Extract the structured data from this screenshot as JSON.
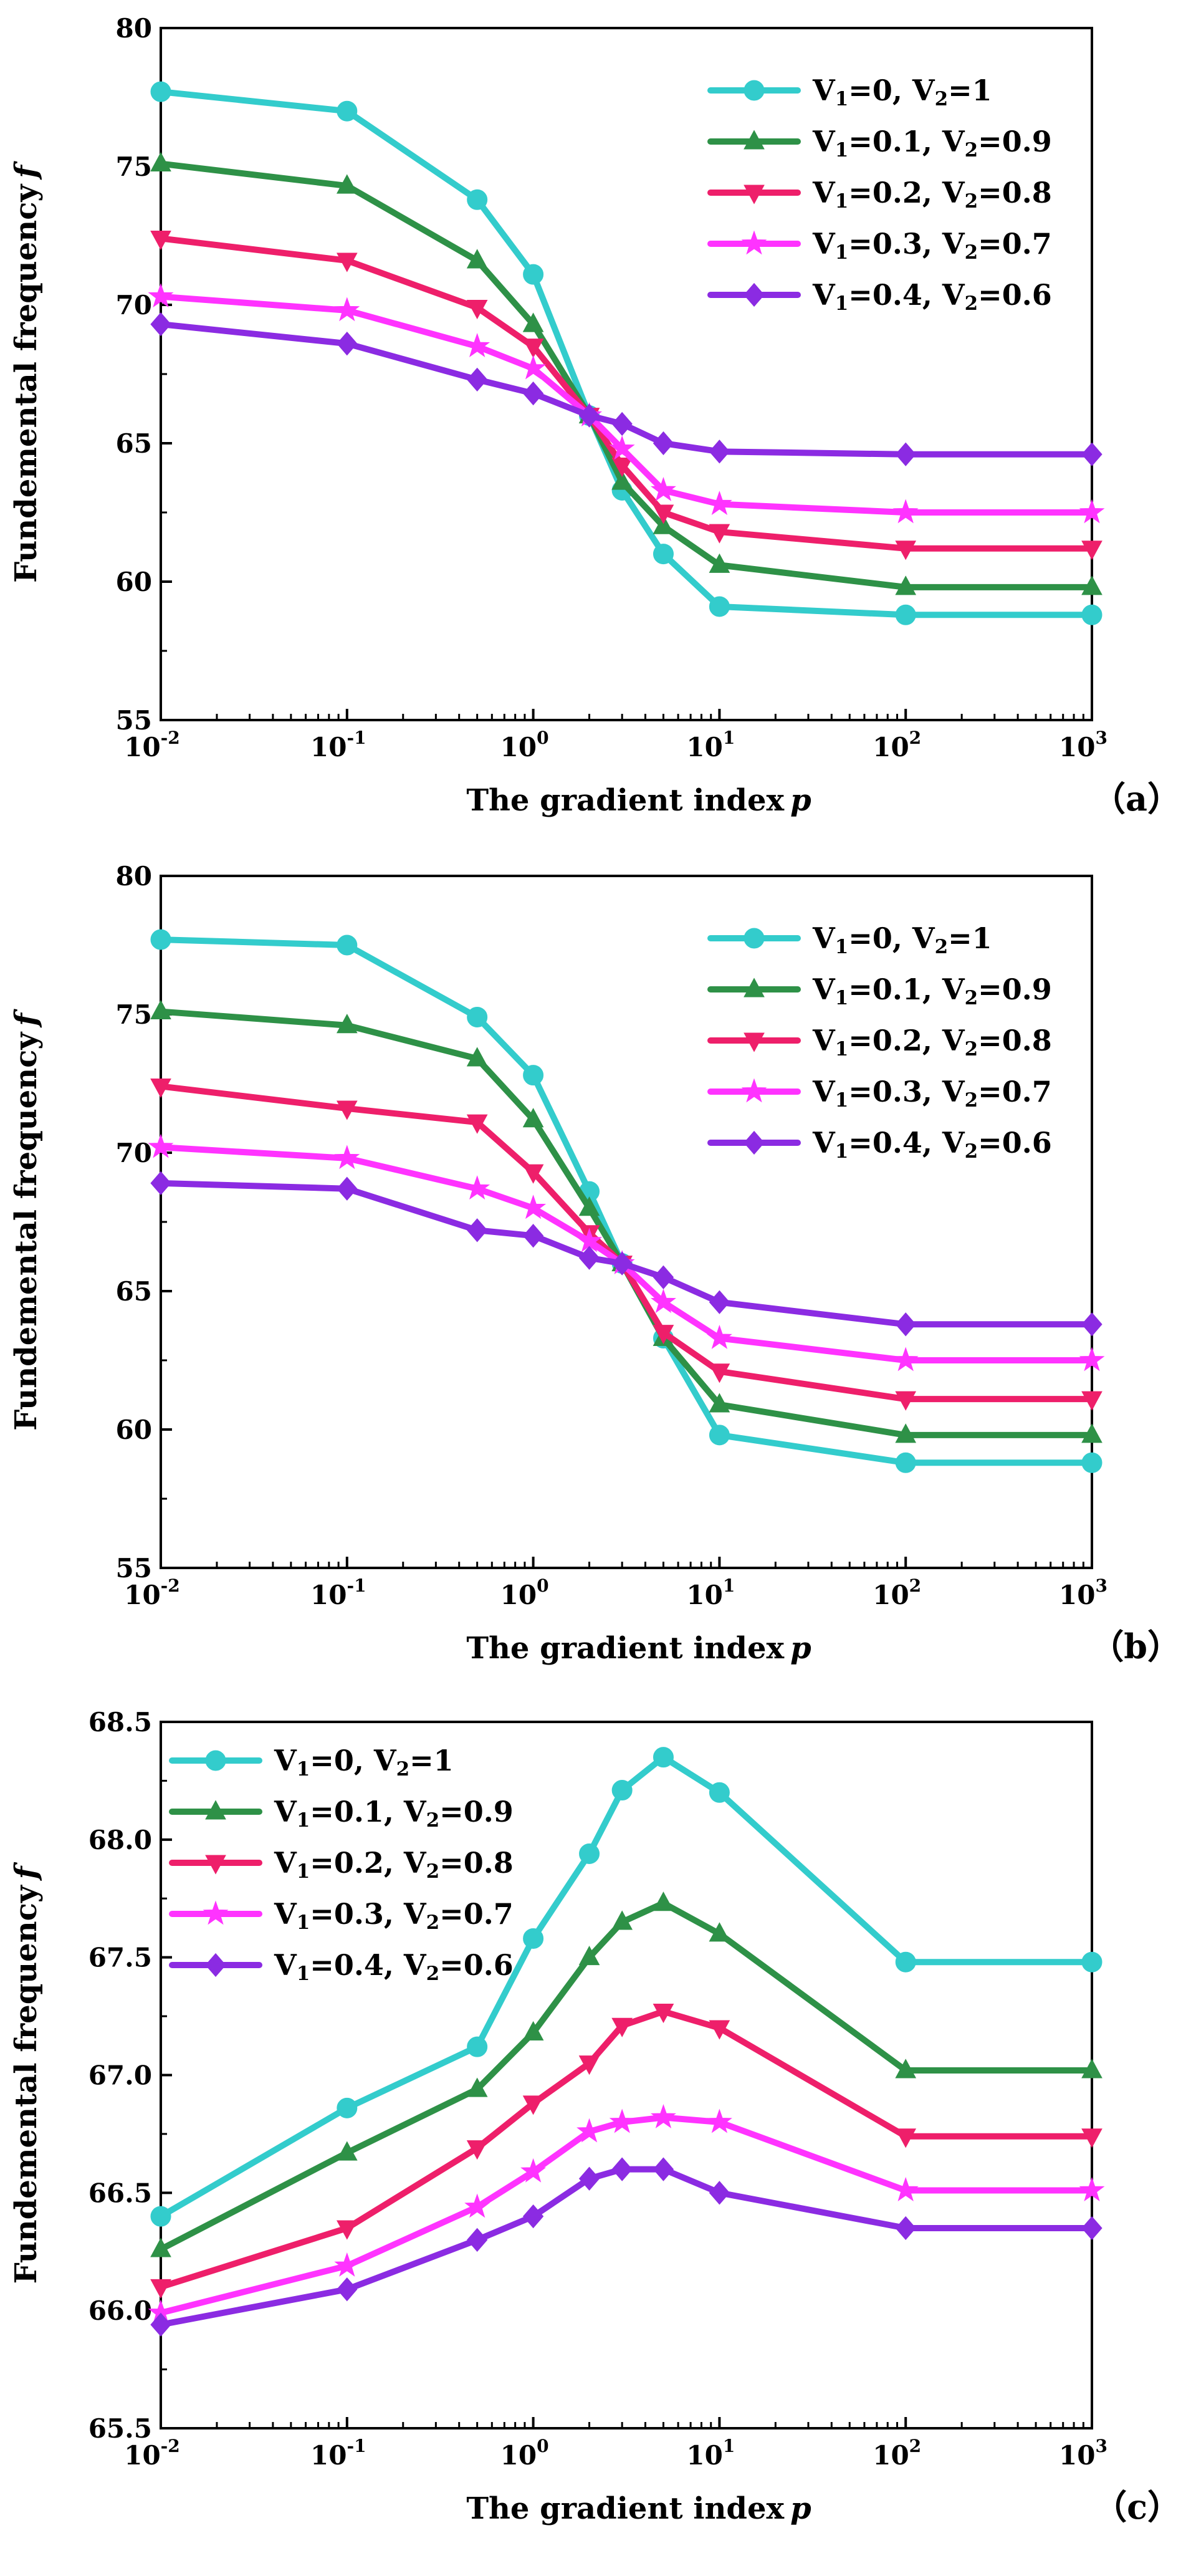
{
  "chart_data": [
    {
      "type": "line",
      "panel_label": "（a）",
      "xlabel": "The gradient index",
      "xlabel_var": "p",
      "ylabel": "Fundemental frequency",
      "ylabel_var": "f",
      "xscale": "log",
      "xlim": [
        0.01,
        1000
      ],
      "ylim": [
        55,
        80
      ],
      "yticks": [
        55,
        60,
        65,
        70,
        75,
        80
      ],
      "ytick_labels": [
        "55",
        "60",
        "65",
        "70",
        "75",
        "80"
      ],
      "xtick_exponents": [
        "-2",
        "-1",
        "0",
        "1",
        "2",
        "3"
      ],
      "legend_position": "top-right",
      "x": [
        0.01,
        0.1,
        0.5,
        1,
        2,
        3,
        5,
        10,
        100,
        1000
      ],
      "series": [
        {
          "name": "V1=0, V2=1",
          "legend": {
            "a": "V",
            "b": "1",
            "c": "=0, V",
            "d": "2",
            "e": "=1"
          },
          "marker": "circle",
          "color": "#33cccc",
          "values": [
            77.7,
            77.0,
            73.8,
            71.1,
            66.0,
            63.3,
            61.0,
            59.1,
            58.8,
            58.8
          ]
        },
        {
          "name": "V1=0.1, V2=0.9",
          "legend": {
            "a": "V",
            "b": "1",
            "c": "=0.1, V",
            "d": "2",
            "e": "=0.9"
          },
          "marker": "triangle-up",
          "color": "#2e9147",
          "values": [
            75.1,
            74.3,
            71.6,
            69.3,
            66.0,
            63.6,
            62.0,
            60.6,
            59.8,
            59.8
          ]
        },
        {
          "name": "V1=0.2, V2=0.8",
          "legend": {
            "a": "V",
            "b": "1",
            "c": "=0.2, V",
            "d": "2",
            "e": "=0.8"
          },
          "marker": "triangle-down",
          "color": "#ee1f6a",
          "values": [
            72.4,
            71.6,
            69.9,
            68.5,
            66.0,
            64.2,
            62.5,
            61.8,
            61.2,
            61.2
          ]
        },
        {
          "name": "V1=0.3, V2=0.7",
          "legend": {
            "a": "V",
            "b": "1",
            "c": "=0.3, V",
            "d": "2",
            "e": "=0.7"
          },
          "marker": "star",
          "color": "#ff33ff",
          "values": [
            70.3,
            69.8,
            68.5,
            67.7,
            66.0,
            64.8,
            63.3,
            62.8,
            62.5,
            62.5
          ]
        },
        {
          "name": "V1=0.4, V2=0.6",
          "legend": {
            "a": "V",
            "b": "1",
            "c": "=0.4, V",
            "d": "2",
            "e": "=0.6"
          },
          "marker": "diamond",
          "color": "#8b2be2",
          "values": [
            69.3,
            68.6,
            67.3,
            66.8,
            66.0,
            65.7,
            65.0,
            64.7,
            64.6,
            64.6
          ]
        }
      ]
    },
    {
      "type": "line",
      "panel_label": "（b）",
      "xlabel": "The gradient index",
      "xlabel_var": "p",
      "ylabel": "Fundemental frequency",
      "ylabel_var": "f",
      "xscale": "log",
      "xlim": [
        0.01,
        1000
      ],
      "ylim": [
        55,
        80
      ],
      "yticks": [
        55,
        60,
        65,
        70,
        75,
        80
      ],
      "ytick_labels": [
        "55",
        "60",
        "65",
        "70",
        "75",
        "80"
      ],
      "xtick_exponents": [
        "-2",
        "-1",
        "0",
        "1",
        "2",
        "3"
      ],
      "legend_position": "top-right",
      "x": [
        0.01,
        0.1,
        0.5,
        1,
        2,
        3,
        5,
        10,
        100,
        1000
      ],
      "series": [
        {
          "name": "V1=0, V2=1",
          "legend": {
            "a": "V",
            "b": "1",
            "c": "=0, V",
            "d": "2",
            "e": "=1"
          },
          "marker": "circle",
          "color": "#33cccc",
          "values": [
            77.7,
            77.5,
            74.9,
            72.8,
            68.6,
            66.0,
            63.3,
            59.8,
            58.8,
            58.8
          ]
        },
        {
          "name": "V1=0.1, V2=0.9",
          "legend": {
            "a": "V",
            "b": "1",
            "c": "=0.1, V",
            "d": "2",
            "e": "=0.9"
          },
          "marker": "triangle-up",
          "color": "#2e9147",
          "values": [
            75.1,
            74.6,
            73.4,
            71.2,
            68.0,
            66.0,
            63.3,
            60.9,
            59.8,
            59.8
          ]
        },
        {
          "name": "V1=0.2, V2=0.8",
          "legend": {
            "a": "V",
            "b": "1",
            "c": "=0.2, V",
            "d": "2",
            "e": "=0.8"
          },
          "marker": "triangle-down",
          "color": "#ee1f6a",
          "values": [
            72.4,
            71.6,
            71.1,
            69.3,
            67.1,
            66.0,
            63.5,
            62.1,
            61.1,
            61.1
          ]
        },
        {
          "name": "V1=0.3, V2=0.7",
          "legend": {
            "a": "V",
            "b": "1",
            "c": "=0.3, V",
            "d": "2",
            "e": "=0.7"
          },
          "marker": "star",
          "color": "#ff33ff",
          "values": [
            70.2,
            69.8,
            68.7,
            68.0,
            66.8,
            66.0,
            64.6,
            63.3,
            62.5,
            62.5
          ]
        },
        {
          "name": "V1=0.4, V2=0.6",
          "legend": {
            "a": "V",
            "b": "1",
            "c": "=0.4, V",
            "d": "2",
            "e": "=0.6"
          },
          "marker": "diamond",
          "color": "#8b2be2",
          "values": [
            68.9,
            68.7,
            67.2,
            67.0,
            66.2,
            66.0,
            65.5,
            64.6,
            63.8,
            63.8
          ]
        }
      ]
    },
    {
      "type": "line",
      "panel_label": "（c）",
      "xlabel": "The gradient index",
      "xlabel_var": "p",
      "ylabel": "Fundemental frequency",
      "ylabel_var": "f",
      "xscale": "log",
      "xlim": [
        0.01,
        1000
      ],
      "ylim": [
        65.5,
        68.5
      ],
      "yticks": [
        65.5,
        66.0,
        66.5,
        67.0,
        67.5,
        68.0,
        68.5
      ],
      "ytick_labels": [
        "65.5",
        "66.0",
        "66.5",
        "67.0",
        "67.5",
        "68.0",
        "68.5"
      ],
      "xtick_exponents": [
        "-2",
        "-1",
        "0",
        "1",
        "2",
        "3"
      ],
      "legend_position": "top-left",
      "x": [
        0.01,
        0.1,
        0.5,
        1,
        2,
        3,
        5,
        10,
        100,
        1000
      ],
      "series": [
        {
          "name": "V1=0, V2=1",
          "legend": {
            "a": "V",
            "b": "1",
            "c": "=0, V",
            "d": "2",
            "e": "=1"
          },
          "marker": "circle",
          "color": "#33cccc",
          "values": [
            66.4,
            66.86,
            67.12,
            67.58,
            67.94,
            68.21,
            68.35,
            68.2,
            67.48,
            67.48
          ]
        },
        {
          "name": "V1=0.1, V2=0.9",
          "legend": {
            "a": "V",
            "b": "1",
            "c": "=0.1, V",
            "d": "2",
            "e": "=0.9"
          },
          "marker": "triangle-up",
          "color": "#2e9147",
          "values": [
            66.26,
            66.67,
            66.94,
            67.18,
            67.5,
            67.65,
            67.73,
            67.6,
            67.02,
            67.02
          ]
        },
        {
          "name": "V1=0.2, V2=0.8",
          "legend": {
            "a": "V",
            "b": "1",
            "c": "=0.2, V",
            "d": "2",
            "e": "=0.8"
          },
          "marker": "triangle-down",
          "color": "#ee1f6a",
          "values": [
            66.1,
            66.35,
            66.69,
            66.88,
            67.05,
            67.21,
            67.27,
            67.2,
            66.74,
            66.74
          ]
        },
        {
          "name": "V1=0.3, V2=0.7",
          "legend": {
            "a": "V",
            "b": "1",
            "c": "=0.3, V",
            "d": "2",
            "e": "=0.7"
          },
          "marker": "star",
          "color": "#ff33ff",
          "values": [
            65.99,
            66.19,
            66.44,
            66.59,
            66.76,
            66.8,
            66.82,
            66.8,
            66.51,
            66.51
          ]
        },
        {
          "name": "V1=0.4, V2=0.6",
          "legend": {
            "a": "V",
            "b": "1",
            "c": "=0.4, V",
            "d": "2",
            "e": "=0.6"
          },
          "marker": "diamond",
          "color": "#8b2be2",
          "values": [
            65.94,
            66.09,
            66.3,
            66.4,
            66.56,
            66.6,
            66.6,
            66.5,
            66.35,
            66.35
          ]
        }
      ]
    }
  ]
}
